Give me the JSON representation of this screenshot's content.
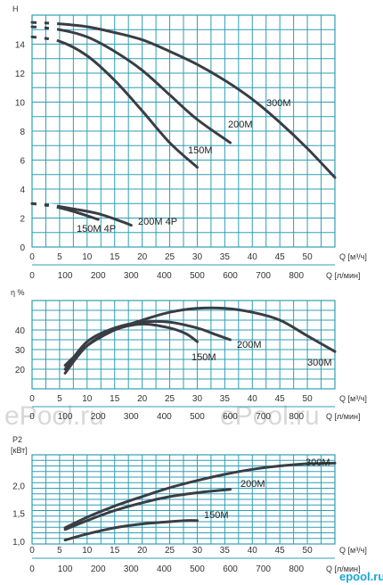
{
  "colors": {
    "grid": "#2f9fb3",
    "curve": "#3a3d44",
    "brand": "#1aa8d8",
    "watermark": "#d8d8d8"
  },
  "watermarks": [
    "ePool.ru",
    "ePool.ru"
  ],
  "brand": "epool.ru",
  "chart_data": [
    {
      "type": "line",
      "ylabel": "H",
      "xlabel_top": "Q [м³/ч]",
      "xlabel_bottom": "Q [л/мин]",
      "xlim": [
        0,
        55
      ],
      "ylim": [
        0,
        16
      ],
      "x_ticks": [
        "0",
        "5",
        "10",
        "15",
        "20",
        "25",
        "30",
        "35",
        "40",
        "45",
        "50"
      ],
      "x2_ticks": [
        "0",
        "100",
        "200",
        "300",
        "400",
        "500",
        "600",
        "700",
        "800"
      ],
      "y_ticks": [
        "0",
        "2",
        "4",
        "6",
        "8",
        "10",
        "12",
        "14"
      ],
      "series": [
        {
          "name": "150M",
          "x": [
            0,
            5,
            10,
            15,
            20,
            25,
            30
          ],
          "y": [
            14.5,
            14.2,
            13.2,
            11.5,
            9.4,
            7.2,
            5.5
          ],
          "dashed_until": 5
        },
        {
          "name": "200M",
          "x": [
            0,
            5,
            10,
            15,
            20,
            25,
            30,
            36
          ],
          "y": [
            15.2,
            15.0,
            14.5,
            13.5,
            12.2,
            10.5,
            8.8,
            7.2
          ],
          "dashed_until": 5
        },
        {
          "name": "300M",
          "x": [
            0,
            5,
            10,
            15,
            20,
            25,
            30,
            35,
            40,
            45,
            50,
            55
          ],
          "y": [
            15.5,
            15.4,
            15.2,
            14.8,
            14.3,
            13.5,
            12.6,
            11.5,
            10.2,
            8.6,
            6.8,
            4.8
          ],
          "dashed_until": 5
        },
        {
          "name": "150M 4P",
          "x": [
            0,
            4,
            8,
            12
          ],
          "y": [
            3.0,
            2.8,
            2.4,
            1.9
          ],
          "dashed_until": 5
        },
        {
          "name": "200M 4P",
          "x": [
            0,
            4,
            8,
            12,
            16,
            18
          ],
          "y": [
            3.0,
            2.85,
            2.6,
            2.3,
            1.8,
            1.5
          ],
          "dashed_until": 5
        }
      ]
    },
    {
      "type": "line",
      "ylabel": "η %",
      "xlabel_top": "Q [м³/ч]",
      "xlabel_bottom": "Q [л/мин]",
      "xlim": [
        0,
        55
      ],
      "ylim": [
        10,
        55
      ],
      "x_ticks": [
        "0",
        "5",
        "10",
        "15",
        "20",
        "25",
        "30",
        "35",
        "40",
        "45",
        "50"
      ],
      "x2_ticks": [
        "0",
        "100",
        "200",
        "300",
        "400",
        "500",
        "600",
        "700",
        "800"
      ],
      "y_ticks": [
        "20",
        "30",
        "40"
      ],
      "series": [
        {
          "name": "150M",
          "x": [
            6,
            10,
            15,
            20,
            25,
            28,
            30
          ],
          "y": [
            18,
            32,
            40,
            43,
            41,
            38,
            34
          ]
        },
        {
          "name": "200M",
          "x": [
            6,
            10,
            15,
            20,
            25,
            30,
            33,
            36
          ],
          "y": [
            20,
            34,
            41,
            44,
            44,
            41,
            38,
            35
          ]
        },
        {
          "name": "300M",
          "x": [
            6,
            10,
            15,
            20,
            25,
            30,
            35,
            40,
            45,
            50,
            55
          ],
          "y": [
            22,
            32,
            40,
            45,
            49,
            51,
            51,
            49,
            45,
            37,
            29
          ]
        }
      ]
    },
    {
      "type": "line",
      "ylabel": "P2",
      "ylabel_unit": "[кВт]",
      "xlabel_top": "Q [м³/ч]",
      "xlabel_bottom": "Q [л/мин]",
      "xlim": [
        0,
        55
      ],
      "ylim": [
        0.95,
        2.55
      ],
      "x_ticks": [
        "0",
        "5",
        "10",
        "15",
        "20",
        "25",
        "30",
        "35",
        "40",
        "45",
        "50"
      ],
      "x2_ticks": [
        "0",
        "100",
        "200",
        "300",
        "400",
        "500",
        "600",
        "700",
        "800"
      ],
      "y_ticks": [
        "1,0",
        "1,5",
        "2,0"
      ],
      "y_tick_values": [
        1.0,
        1.5,
        2.0
      ],
      "series": [
        {
          "name": "150M",
          "x": [
            6,
            10,
            15,
            20,
            25,
            28,
            30
          ],
          "y": [
            1.02,
            1.13,
            1.24,
            1.31,
            1.35,
            1.37,
            1.37
          ]
        },
        {
          "name": "200M",
          "x": [
            6,
            10,
            15,
            20,
            25,
            30,
            36
          ],
          "y": [
            1.21,
            1.37,
            1.55,
            1.69,
            1.8,
            1.87,
            1.93
          ]
        },
        {
          "name": "300M",
          "x": [
            6,
            10,
            15,
            20,
            25,
            30,
            35,
            40,
            45,
            50,
            55
          ],
          "y": [
            1.24,
            1.43,
            1.63,
            1.8,
            1.96,
            2.09,
            2.2,
            2.29,
            2.35,
            2.39,
            2.4
          ]
        }
      ]
    }
  ]
}
